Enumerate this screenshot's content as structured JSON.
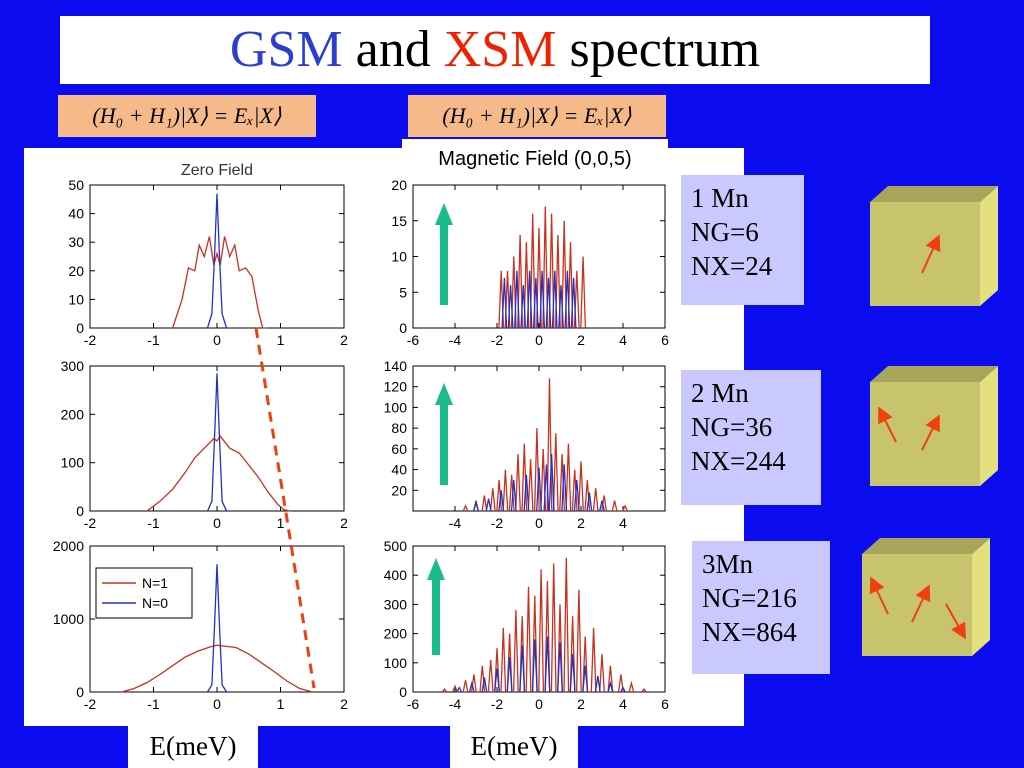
{
  "title": {
    "part1": "GSM",
    "part2": " and ",
    "part3": "XSM",
    "part4": " spectrum"
  },
  "equations": [
    "(H₀ + H₁)|X⟩ = Eₓ|X⟩",
    "(H₀ + H₁)|X⟩ = Eₓ|X⟩"
  ],
  "magnetic_field_label": "Magnetic Field (0,0,5)",
  "info_boxes": [
    {
      "lines": [
        "1 Mn",
        "NG=6",
        "NX=24"
      ]
    },
    {
      "lines": [
        "2 Mn",
        "NG=36",
        "NX=244"
      ]
    },
    {
      "lines": [
        "3Mn",
        "NG=216",
        "NX=864"
      ]
    }
  ],
  "xlabels": [
    "E(meV)",
    "E(meV)"
  ],
  "colors": {
    "background": "#0b0bf0",
    "n1": "#c8321e",
    "n0": "#2032c8",
    "arrow_green": "#1abc8c",
    "dash": "#f04010",
    "cube_front": "#c8c46e",
    "cube_side": "#e4e07e",
    "cube_top": "#a8a45a",
    "spin_arrow": "#f04010"
  },
  "chart_data": [
    {
      "type": "line",
      "title": "Zero Field",
      "xlim": [
        -2,
        2
      ],
      "ylim": [
        0,
        50
      ],
      "xticks": [
        "-2",
        "-1",
        "0",
        "1",
        "2"
      ],
      "yticks": [
        "0",
        "10",
        "20",
        "30",
        "40",
        "50"
      ],
      "series": [
        {
          "name": "N=1",
          "kind": "gsm_broad",
          "x": [
            -0.7,
            -0.55,
            -0.45,
            -0.35,
            -0.28,
            -0.2,
            -0.12,
            -0.05,
            0.0,
            0.05,
            0.12,
            0.2,
            0.28,
            0.35,
            0.45,
            0.55,
            0.65,
            0.72,
            0.78
          ],
          "y": [
            0,
            10,
            21,
            20,
            29,
            25,
            32,
            22,
            26,
            22,
            32,
            25,
            29,
            20,
            21,
            18,
            6,
            0,
            0
          ]
        },
        {
          "name": "N=0",
          "kind": "gsm_narrow",
          "x": [
            -0.15,
            -0.08,
            -0.04,
            0.0,
            0.04,
            0.08,
            0.15
          ],
          "y": [
            0,
            5,
            25,
            47,
            25,
            5,
            0
          ]
        }
      ]
    },
    {
      "type": "line",
      "xlim": [
        -2,
        2
      ],
      "ylim": [
        0,
        300
      ],
      "xticks": [
        "-2",
        "-1",
        "0",
        "1",
        "2"
      ],
      "yticks": [
        "0",
        "100",
        "200",
        "300"
      ],
      "series": [
        {
          "name": "N=1",
          "kind": "gsm_broad",
          "x": [
            -1.1,
            -0.9,
            -0.7,
            -0.5,
            -0.35,
            -0.2,
            -0.05,
            0.0,
            0.05,
            0.2,
            0.35,
            0.5,
            0.65,
            0.8,
            0.95,
            1.05,
            1.15
          ],
          "y": [
            0,
            20,
            45,
            80,
            110,
            130,
            150,
            145,
            155,
            130,
            120,
            95,
            70,
            40,
            15,
            3,
            0
          ]
        },
        {
          "name": "N=0",
          "kind": "gsm_narrow",
          "x": [
            -0.15,
            -0.08,
            -0.04,
            0.0,
            0.04,
            0.08,
            0.15
          ],
          "y": [
            0,
            20,
            150,
            285,
            150,
            20,
            0
          ]
        }
      ]
    },
    {
      "type": "line",
      "xlim": [
        -2,
        2
      ],
      "ylim": [
        0,
        2000
      ],
      "xticks": [
        "-2",
        "-1",
        "0",
        "1",
        "2"
      ],
      "yticks": [
        "0",
        "1000",
        "2000"
      ],
      "legend": [
        {
          "name": "N=1"
        },
        {
          "name": "N=0"
        }
      ],
      "series": [
        {
          "name": "N=1",
          "kind": "gsm_broad",
          "x": [
            -1.5,
            -1.3,
            -1.1,
            -0.9,
            -0.7,
            -0.5,
            -0.3,
            -0.1,
            0.0,
            0.1,
            0.3,
            0.5,
            0.7,
            0.9,
            1.1,
            1.3,
            1.5
          ],
          "y": [
            0,
            50,
            130,
            240,
            360,
            480,
            560,
            620,
            640,
            630,
            610,
            520,
            400,
            280,
            150,
            50,
            0
          ]
        },
        {
          "name": "N=0",
          "kind": "gsm_narrow",
          "x": [
            -0.15,
            -0.08,
            -0.04,
            0.0,
            0.04,
            0.08,
            0.15
          ],
          "y": [
            0,
            100,
            900,
            1750,
            900,
            100,
            0
          ]
        }
      ]
    },
    {
      "type": "line",
      "xlim": [
        -6,
        6
      ],
      "ylim": [
        0,
        20
      ],
      "xticks": [
        "-6",
        "-4",
        "-2",
        "0",
        "2",
        "4",
        "6"
      ],
      "yticks": [
        "0",
        "5",
        "10",
        "15",
        "20"
      ],
      "series": [
        {
          "name": "N=1",
          "kind": "xsm_peaks",
          "x": [
            -1.8,
            -1.5,
            -1.2,
            -0.9,
            -0.6,
            -0.3,
            0.0,
            0.3,
            0.6,
            0.9,
            1.2,
            1.5,
            1.8,
            2.1
          ],
          "y": [
            8,
            8,
            10,
            13,
            12,
            16,
            14,
            17,
            16,
            13,
            15,
            12,
            8,
            10
          ]
        },
        {
          "name": "N=0",
          "kind": "xsm_peaks",
          "x": [
            -1.65,
            -1.35,
            -1.05,
            -0.75,
            -0.45,
            -0.15,
            0.15,
            0.45,
            0.75,
            1.05,
            1.35,
            1.65
          ],
          "y": [
            7,
            6,
            8,
            6,
            8,
            7,
            8,
            7,
            8,
            6,
            8,
            7
          ]
        }
      ]
    },
    {
      "type": "line",
      "xlim": [
        -6,
        6
      ],
      "ylim": [
        0,
        140
      ],
      "xticks": [
        "-4",
        "-2",
        "0",
        "2",
        "4"
      ],
      "yticks": [
        "20",
        "40",
        "60",
        "80",
        "100",
        "120",
        "140"
      ],
      "series": [
        {
          "name": "N=1",
          "kind": "xsm_peaks",
          "x": [
            -3.5,
            -3.0,
            -2.6,
            -2.2,
            -1.9,
            -1.6,
            -1.3,
            -1.0,
            -0.7,
            -0.4,
            -0.1,
            0.2,
            0.5,
            0.8,
            1.1,
            1.4,
            1.7,
            2.0,
            2.3,
            2.7,
            3.1,
            3.6,
            4.1
          ],
          "y": [
            5,
            10,
            15,
            22,
            30,
            40,
            35,
            55,
            65,
            50,
            80,
            60,
            128,
            75,
            55,
            65,
            40,
            48,
            30,
            22,
            15,
            10,
            5
          ]
        },
        {
          "name": "N=0",
          "kind": "xsm_peaks",
          "x": [
            -3.0,
            -2.4,
            -1.8,
            -1.2,
            -0.6,
            0.0,
            0.35,
            0.6,
            1.2,
            1.8,
            2.4,
            3.0
          ],
          "y": [
            8,
            12,
            20,
            30,
            35,
            42,
            45,
            55,
            45,
            30,
            18,
            10
          ]
        }
      ]
    },
    {
      "type": "line",
      "xlim": [
        -6,
        6
      ],
      "ylim": [
        0,
        500
      ],
      "xticks": [
        "-6",
        "-4",
        "-2",
        "0",
        "2",
        "4",
        "6"
      ],
      "yticks": [
        "0",
        "100",
        "200",
        "300",
        "400",
        "500"
      ],
      "series": [
        {
          "name": "N=1",
          "kind": "xsm_peaks",
          "x": [
            -4.5,
            -4.0,
            -3.5,
            -3.1,
            -2.7,
            -2.3,
            -2.0,
            -1.7,
            -1.4,
            -1.1,
            -0.8,
            -0.5,
            -0.2,
            0.1,
            0.4,
            0.7,
            1.0,
            1.3,
            1.6,
            1.9,
            2.2,
            2.6,
            3.0,
            3.4,
            3.9,
            4.4,
            5.0
          ],
          "y": [
            10,
            20,
            40,
            60,
            90,
            110,
            150,
            220,
            200,
            280,
            260,
            360,
            330,
            420,
            380,
            440,
            300,
            460,
            260,
            350,
            190,
            220,
            130,
            90,
            60,
            30,
            10
          ]
        },
        {
          "name": "N=0",
          "kind": "xsm_peaks",
          "x": [
            -3.8,
            -3.2,
            -2.6,
            -2.0,
            -1.4,
            -0.8,
            -0.2,
            0.4,
            1.0,
            1.6,
            2.2,
            2.8,
            3.4,
            4.0
          ],
          "y": [
            15,
            30,
            50,
            80,
            120,
            160,
            180,
            190,
            170,
            130,
            90,
            55,
            30,
            15
          ]
        }
      ]
    }
  ]
}
